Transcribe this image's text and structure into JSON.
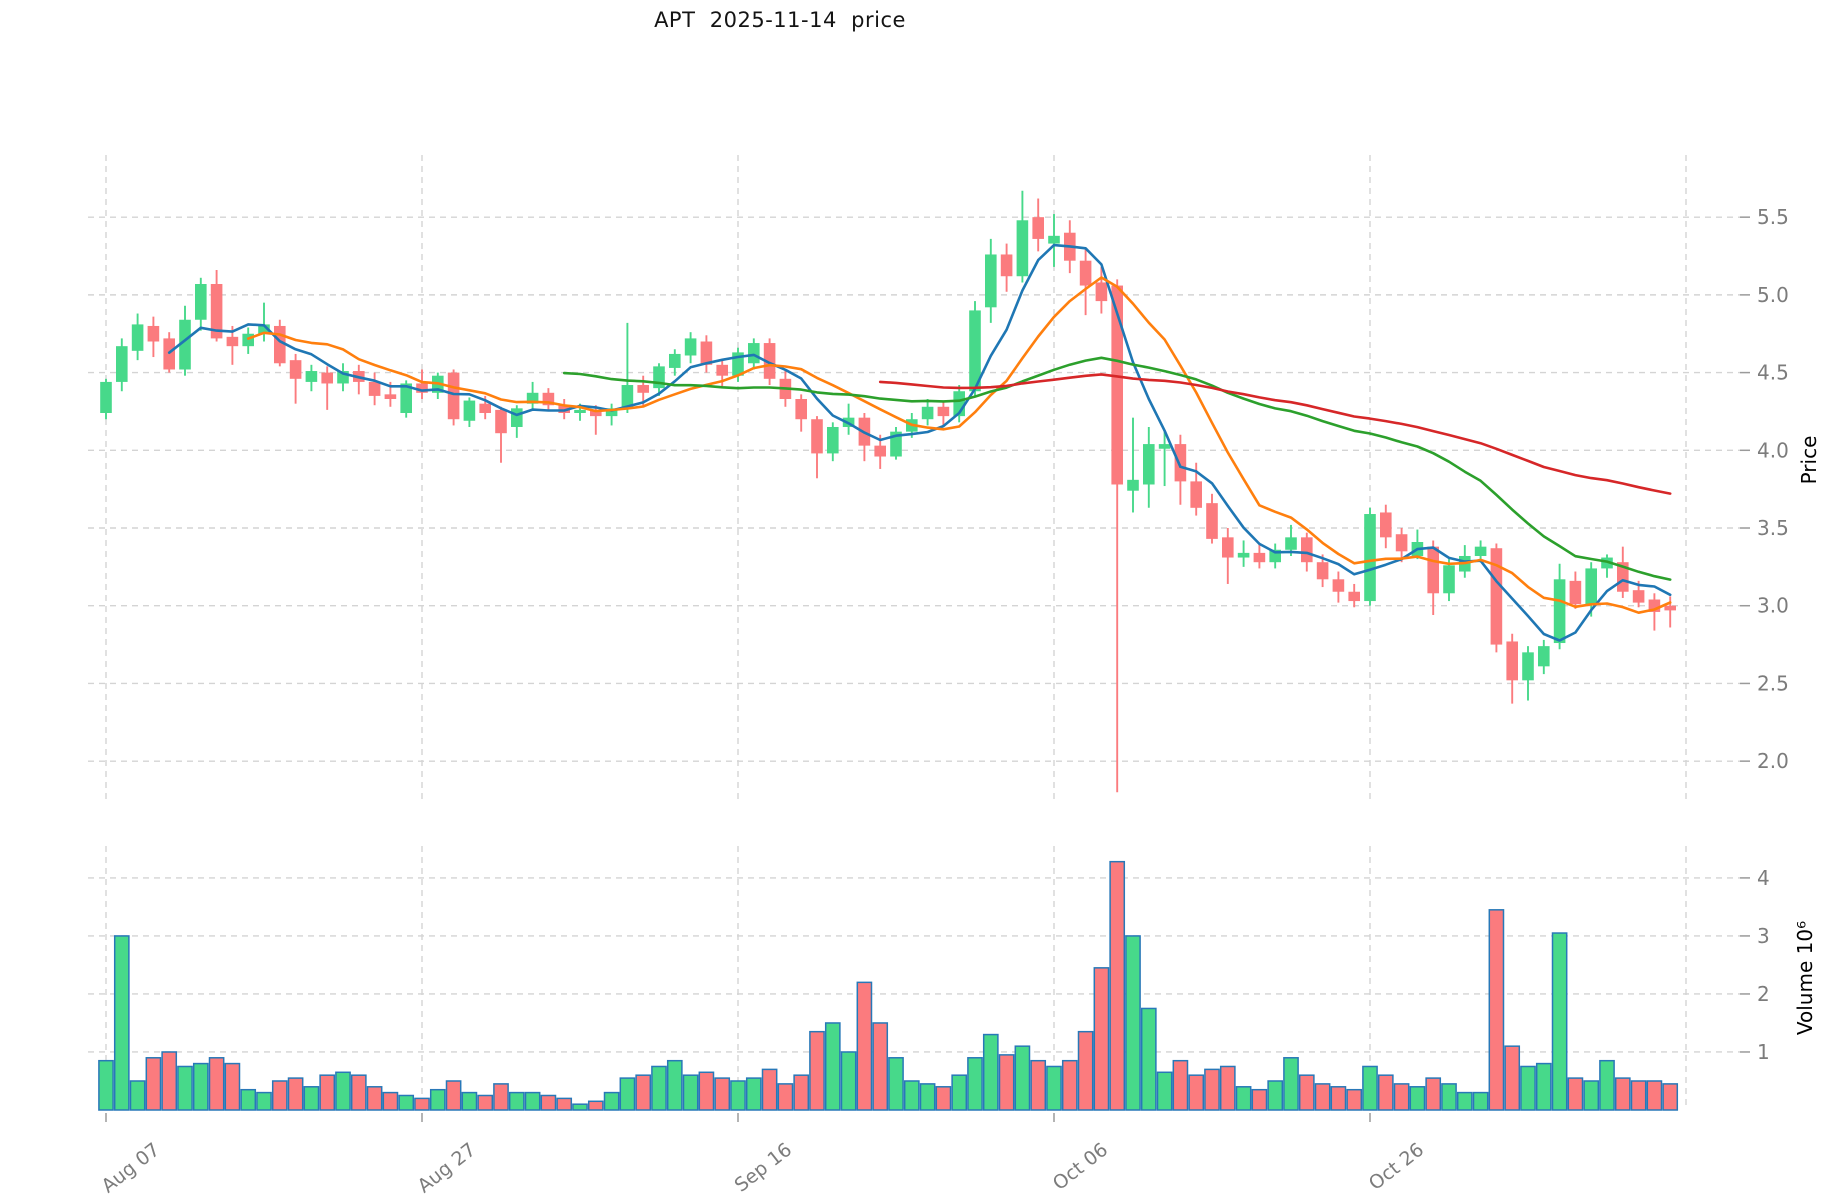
{
  "title": "APT  2025-11-14  price",
  "price_axis": {
    "label": "Price",
    "ticks": [
      "5.5",
      "5.0",
      "4.5",
      "4.0",
      "3.5",
      "3.0",
      "2.5",
      "2.0"
    ],
    "tick_values": [
      5.5,
      5.0,
      4.5,
      4.0,
      3.5,
      3.0,
      2.5,
      2.0
    ]
  },
  "volume_axis": {
    "label": "Volume  10⁶",
    "ticks": [
      "4",
      "3",
      "2",
      "1"
    ],
    "tick_values": [
      4,
      3,
      2,
      1
    ]
  },
  "x_axis": {
    "tick_labels": [
      "Aug 07",
      "Aug 27",
      "Sep 16",
      "Oct 06",
      "Oct 26"
    ],
    "tick_indices": [
      0,
      20,
      40,
      60,
      80
    ],
    "gridline_indices": [
      0,
      20,
      40,
      60,
      80,
      100
    ]
  },
  "chart_data": {
    "type": "candlestick+volume",
    "start_date": "2025-08-07",
    "end_date": "2025-11-14",
    "price_ylim": [
      1.75,
      5.9
    ],
    "volume_ylim": [
      0,
      4.55
    ],
    "grid": true,
    "legend": "none",
    "colors": {
      "up": "#47d98a",
      "down": "#fb7b7e",
      "volume_border": "#2878b8",
      "gridline": "#d4d4d4",
      "tick_text": "#7c7c7c",
      "axis_title": "#000000"
    },
    "moving_averages": [
      {
        "name": "MA5",
        "window": 5,
        "color": "#1f77b4"
      },
      {
        "name": "MA10",
        "window": 10,
        "color": "#ff7f0e"
      },
      {
        "name": "MA30",
        "window": 30,
        "color": "#2ca02c"
      },
      {
        "name": "MA50",
        "window": 50,
        "color": "#d62728"
      }
    ],
    "ohlc": [
      [
        4.24,
        4.46,
        4.2,
        4.44
      ],
      [
        4.44,
        4.72,
        4.38,
        4.67
      ],
      [
        4.64,
        4.88,
        4.58,
        4.81
      ],
      [
        4.8,
        4.86,
        4.6,
        4.7
      ],
      [
        4.72,
        4.76,
        4.5,
        4.52
      ],
      [
        4.52,
        4.93,
        4.48,
        4.84
      ],
      [
        4.84,
        5.11,
        4.77,
        5.07
      ],
      [
        5.07,
        5.16,
        4.7,
        4.72
      ],
      [
        4.73,
        4.8,
        4.55,
        4.67
      ],
      [
        4.67,
        4.79,
        4.62,
        4.75
      ],
      [
        4.75,
        4.95,
        4.7,
        4.81
      ],
      [
        4.8,
        4.84,
        4.54,
        4.56
      ],
      [
        4.58,
        4.62,
        4.3,
        4.46
      ],
      [
        4.44,
        4.55,
        4.38,
        4.51
      ],
      [
        4.5,
        4.54,
        4.26,
        4.43
      ],
      [
        4.43,
        4.56,
        4.38,
        4.51
      ],
      [
        4.51,
        4.55,
        4.36,
        4.44
      ],
      [
        4.44,
        4.5,
        4.29,
        4.35
      ],
      [
        4.36,
        4.44,
        4.28,
        4.33
      ],
      [
        4.24,
        4.45,
        4.21,
        4.43
      ],
      [
        4.43,
        4.52,
        4.33,
        4.37
      ],
      [
        4.37,
        4.5,
        4.33,
        4.48
      ],
      [
        4.5,
        4.52,
        4.16,
        4.2
      ],
      [
        4.19,
        4.34,
        4.15,
        4.32
      ],
      [
        4.3,
        4.35,
        4.2,
        4.24
      ],
      [
        4.26,
        4.28,
        3.92,
        4.11
      ],
      [
        4.15,
        4.29,
        4.08,
        4.27
      ],
      [
        4.3,
        4.44,
        4.26,
        4.37
      ],
      [
        4.37,
        4.4,
        4.25,
        4.29
      ],
      [
        4.29,
        4.33,
        4.2,
        4.24
      ],
      [
        4.24,
        4.3,
        4.19,
        4.26
      ],
      [
        4.26,
        4.29,
        4.1,
        4.22
      ],
      [
        4.22,
        4.3,
        4.16,
        4.27
      ],
      [
        4.27,
        4.82,
        4.24,
        4.42
      ],
      [
        4.42,
        4.48,
        4.28,
        4.37
      ],
      [
        4.4,
        4.56,
        4.35,
        4.54
      ],
      [
        4.53,
        4.65,
        4.48,
        4.62
      ],
      [
        4.61,
        4.76,
        4.56,
        4.72
      ],
      [
        4.7,
        4.74,
        4.5,
        4.55
      ],
      [
        4.55,
        4.58,
        4.4,
        4.48
      ],
      [
        4.48,
        4.66,
        4.44,
        4.63
      ],
      [
        4.56,
        4.72,
        4.52,
        4.69
      ],
      [
        4.69,
        4.72,
        4.42,
        4.46
      ],
      [
        4.46,
        4.52,
        4.28,
        4.33
      ],
      [
        4.33,
        4.36,
        4.12,
        4.2
      ],
      [
        4.2,
        4.22,
        3.82,
        3.98
      ],
      [
        3.98,
        4.18,
        3.93,
        4.15
      ],
      [
        4.15,
        4.3,
        4.1,
        4.21
      ],
      [
        4.21,
        4.24,
        3.93,
        4.03
      ],
      [
        4.03,
        4.1,
        3.88,
        3.96
      ],
      [
        3.96,
        4.15,
        3.94,
        4.12
      ],
      [
        4.12,
        4.24,
        4.08,
        4.2
      ],
      [
        4.2,
        4.33,
        4.16,
        4.28
      ],
      [
        4.28,
        4.31,
        4.16,
        4.22
      ],
      [
        4.22,
        4.42,
        4.18,
        4.38
      ],
      [
        4.38,
        4.96,
        4.35,
        4.9
      ],
      [
        4.92,
        5.36,
        4.82,
        5.26
      ],
      [
        5.26,
        5.33,
        5.02,
        5.12
      ],
      [
        5.12,
        5.67,
        5.08,
        5.48
      ],
      [
        5.5,
        5.62,
        5.28,
        5.36
      ],
      [
        5.33,
        5.52,
        5.18,
        5.38
      ],
      [
        5.4,
        5.48,
        5.14,
        5.22
      ],
      [
        5.22,
        5.3,
        4.87,
        5.06
      ],
      [
        5.08,
        5.18,
        4.88,
        4.96
      ],
      [
        5.06,
        5.1,
        1.8,
        3.78
      ],
      [
        3.74,
        4.21,
        3.6,
        3.81
      ],
      [
        3.78,
        4.15,
        3.63,
        4.04
      ],
      [
        4.01,
        4.12,
        3.77,
        4.04
      ],
      [
        4.04,
        4.1,
        3.65,
        3.8
      ],
      [
        3.8,
        3.92,
        3.58,
        3.63
      ],
      [
        3.66,
        3.72,
        3.4,
        3.43
      ],
      [
        3.44,
        3.5,
        3.14,
        3.31
      ],
      [
        3.31,
        3.42,
        3.25,
        3.34
      ],
      [
        3.34,
        3.4,
        3.24,
        3.28
      ],
      [
        3.28,
        3.4,
        3.24,
        3.36
      ],
      [
        3.36,
        3.52,
        3.32,
        3.44
      ],
      [
        3.44,
        3.47,
        3.22,
        3.28
      ],
      [
        3.28,
        3.33,
        3.12,
        3.17
      ],
      [
        3.17,
        3.22,
        3.02,
        3.09
      ],
      [
        3.09,
        3.14,
        2.99,
        3.03
      ],
      [
        3.03,
        3.63,
        3.0,
        3.59
      ],
      [
        3.6,
        3.65,
        3.37,
        3.44
      ],
      [
        3.46,
        3.5,
        3.28,
        3.35
      ],
      [
        3.32,
        3.49,
        3.3,
        3.41
      ],
      [
        3.38,
        3.42,
        2.94,
        3.08
      ],
      [
        3.08,
        3.3,
        3.03,
        3.26
      ],
      [
        3.22,
        3.39,
        3.18,
        3.32
      ],
      [
        3.32,
        3.42,
        3.28,
        3.38
      ],
      [
        3.37,
        3.4,
        2.7,
        2.75
      ],
      [
        2.77,
        2.82,
        2.37,
        2.52
      ],
      [
        2.52,
        2.74,
        2.39,
        2.7
      ],
      [
        2.61,
        2.78,
        2.56,
        2.74
      ],
      [
        2.76,
        3.27,
        2.72,
        3.17
      ],
      [
        3.16,
        3.22,
        2.98,
        3.01
      ],
      [
        3.01,
        3.28,
        2.93,
        3.24
      ],
      [
        3.24,
        3.33,
        3.18,
        3.31
      ],
      [
        3.28,
        3.38,
        3.05,
        3.09
      ],
      [
        3.1,
        3.16,
        2.99,
        3.02
      ],
      [
        3.04,
        3.08,
        2.84,
        2.96
      ],
      [
        3.0,
        3.06,
        2.86,
        2.97
      ]
    ],
    "volume_m": [
      0.85,
      3.0,
      0.5,
      0.9,
      1.0,
      0.75,
      0.8,
      0.9,
      0.8,
      0.35,
      0.3,
      0.5,
      0.55,
      0.4,
      0.6,
      0.65,
      0.6,
      0.4,
      0.3,
      0.25,
      0.2,
      0.35,
      0.5,
      0.3,
      0.25,
      0.45,
      0.3,
      0.3,
      0.25,
      0.2,
      0.1,
      0.15,
      0.3,
      0.55,
      0.6,
      0.75,
      0.85,
      0.6,
      0.65,
      0.55,
      0.5,
      0.55,
      0.7,
      0.45,
      0.6,
      1.35,
      1.5,
      1.0,
      2.2,
      1.5,
      0.9,
      0.5,
      0.45,
      0.4,
      0.6,
      0.9,
      1.3,
      0.95,
      1.1,
      0.85,
      0.75,
      0.85,
      1.35,
      2.45,
      4.28,
      3.0,
      1.75,
      0.65,
      0.85,
      0.6,
      0.7,
      0.75,
      0.4,
      0.35,
      0.5,
      0.9,
      0.6,
      0.45,
      0.4,
      0.35,
      0.75,
      0.6,
      0.45,
      0.4,
      0.55,
      0.45,
      0.3,
      0.3,
      3.45,
      1.1,
      0.75,
      0.8,
      3.05,
      0.55,
      0.5,
      0.85,
      0.55,
      0.5,
      0.5,
      0.45
    ]
  }
}
